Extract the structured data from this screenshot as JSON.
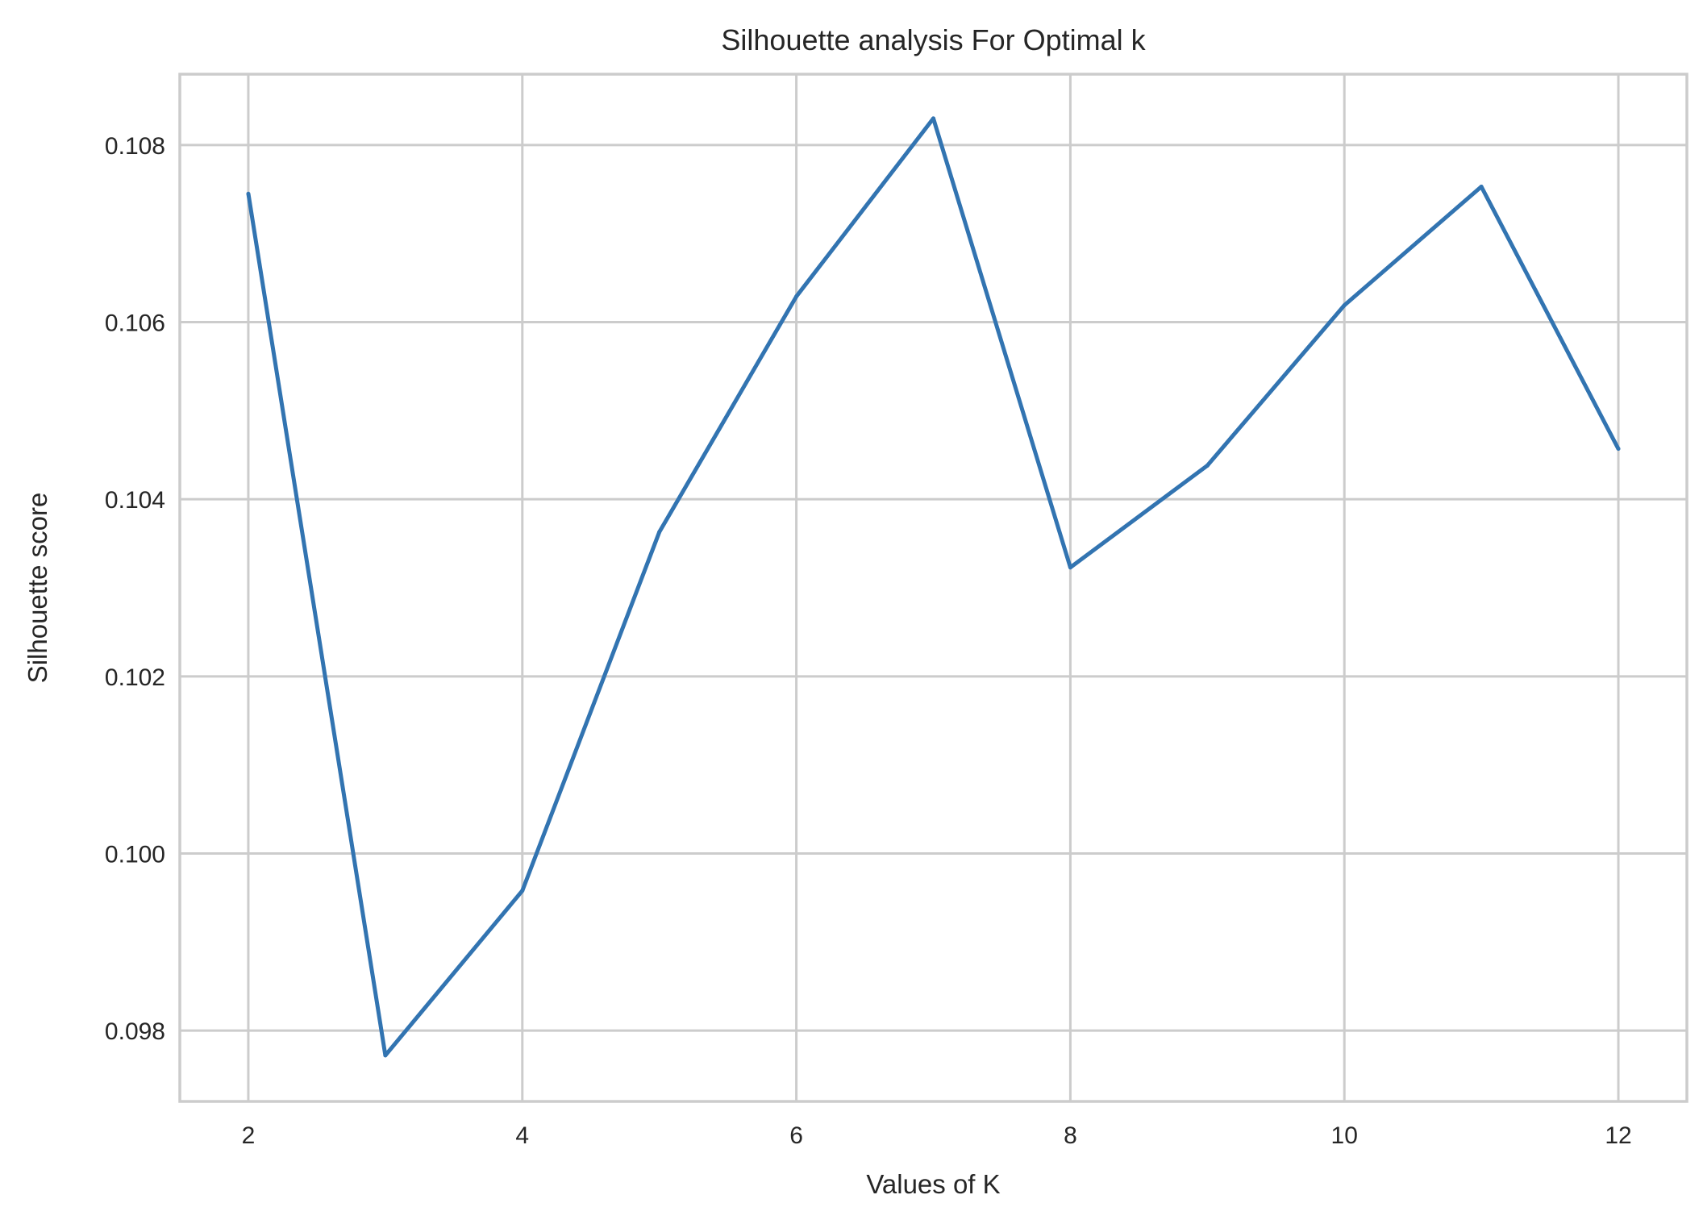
{
  "chart_data": {
    "type": "line",
    "title": "Silhouette analysis For Optimal k",
    "xlabel": "Values of K",
    "ylabel": "Silhouette score",
    "x": [
      2,
      3,
      4,
      5,
      6,
      7,
      8,
      9,
      10,
      11,
      12
    ],
    "series": [
      {
        "values": [
          0.10745,
          0.09772,
          0.09958,
          0.10363,
          0.10629,
          0.1083,
          0.10323,
          0.10438,
          0.10619,
          0.10753,
          0.10457
        ]
      }
    ],
    "xlim": [
      1.5,
      12.5
    ],
    "ylim": [
      0.0972,
      0.1088
    ],
    "xticks": [
      2,
      4,
      6,
      8,
      10,
      12
    ],
    "xtick_labels": [
      "2",
      "4",
      "6",
      "8",
      "10",
      "12"
    ],
    "yticks": [
      0.098,
      0.1,
      0.102,
      0.104,
      0.106,
      0.108
    ],
    "ytick_labels": [
      "0.098",
      "0.100",
      "0.102",
      "0.104",
      "0.106",
      "0.108"
    ],
    "grid": true,
    "colors": {
      "line": "#3274b1",
      "grid": "#cccccc",
      "text": "#262626"
    }
  }
}
